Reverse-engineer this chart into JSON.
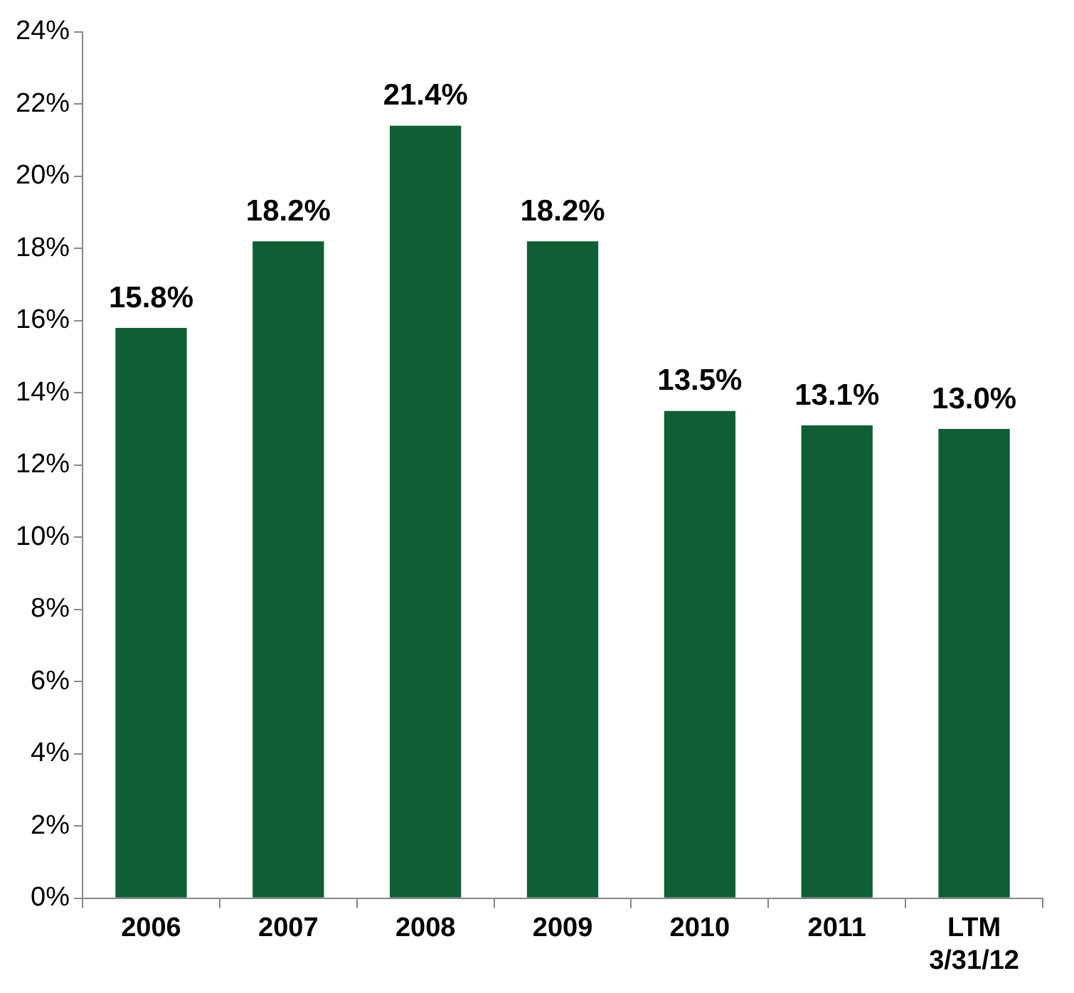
{
  "chart_data": {
    "type": "bar",
    "categories": [
      "2006",
      "2007",
      "2008",
      "2009",
      "2010",
      "2011",
      "LTM 3/31/12"
    ],
    "values": [
      15.8,
      18.2,
      21.4,
      18.2,
      13.5,
      13.1,
      13.0
    ],
    "value_labels": [
      "15.8%",
      "18.2%",
      "21.4%",
      "18.2%",
      "13.5%",
      "13.1%",
      "13.0%"
    ],
    "color": "#0f5e36",
    "ylim": [
      0,
      24
    ],
    "yticks": [
      {
        "value": 0,
        "label": "0%"
      },
      {
        "value": 2,
        "label": "2%"
      },
      {
        "value": 4,
        "label": "4%"
      },
      {
        "value": 6,
        "label": "6%"
      },
      {
        "value": 8,
        "label": "8%"
      },
      {
        "value": 10,
        "label": "10%"
      },
      {
        "value": 12,
        "label": "12%"
      },
      {
        "value": 14,
        "label": "14%"
      },
      {
        "value": 16,
        "label": "16%"
      },
      {
        "value": 18,
        "label": "18%"
      },
      {
        "value": 20,
        "label": "20%"
      },
      {
        "value": 22,
        "label": "22%"
      },
      {
        "value": 24,
        "label": "24%"
      }
    ],
    "grid": false,
    "legend": false
  }
}
